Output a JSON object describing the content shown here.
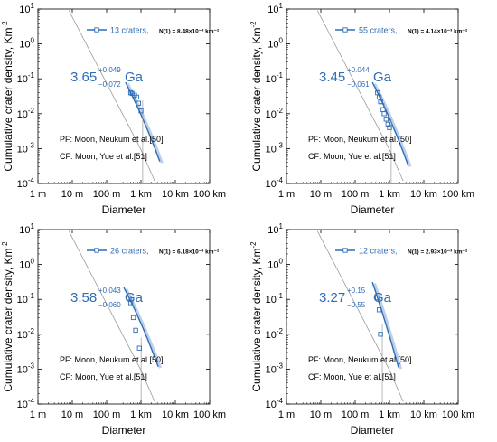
{
  "chart_data": [
    {
      "type": "scatter",
      "x_scale": "log",
      "y_scale": "log",
      "xlabel": "Diameter",
      "ylabel": "Cumulative crater density, Km",
      "ylabel_sup": "-2",
      "xlim": [
        "1 m",
        "100 km"
      ],
      "ylim": [
        "10^-4",
        "10^1"
      ],
      "x_ticks": [
        "1 m",
        "10 m",
        "100 m",
        "1 km",
        "10 km",
        "100 km"
      ],
      "y_ticks": [
        "10^1",
        "10^0",
        "10^-1",
        "10^-2",
        "10^-3",
        "10^-4"
      ],
      "legend": {
        "label": "13 craters,",
        "n1": "N(1) = 8.48×10⁻³ km⁻²",
        "placement": "top"
      },
      "age": {
        "value": "3.65",
        "plus": "+0.049",
        "minus": "−0.072",
        "unit": "Ga"
      },
      "notes": [
        "PF: Moon, Neukum et al.[50]",
        "CF: Moon, Yue et al.[51]"
      ],
      "series": [
        {
          "x_km": [
            0.5,
            0.55,
            0.65,
            0.75,
            0.85,
            1.0
          ],
          "y": [
            0.04,
            0.038,
            0.034,
            0.03,
            0.02,
            0.012
          ]
        }
      ],
      "colors": {
        "accent": "#2f6db5",
        "isochron": "#9a9a9a"
      }
    },
    {
      "type": "scatter",
      "x_scale": "log",
      "y_scale": "log",
      "xlabel": "Diameter",
      "ylabel": "Cumulative crater density, Km",
      "ylabel_sup": "-2",
      "xlim": [
        "1 m",
        "100 km"
      ],
      "ylim": [
        "10^-4",
        "10^1"
      ],
      "x_ticks": [
        "1 m",
        "10 m",
        "100 m",
        "1 km",
        "10 km",
        "100 km"
      ],
      "y_ticks": [
        "10^1",
        "10^0",
        "10^-1",
        "10^-2",
        "10^-3",
        "10^-4"
      ],
      "legend": {
        "label": "55 craters,",
        "n1": "N(1) = 4.14×10⁻³ km⁻²",
        "placement": "top"
      },
      "age": {
        "value": "3.45",
        "plus": "+0.044",
        "minus": "−0.061",
        "unit": "Ga"
      },
      "notes": [
        "PF: Moon, Neukum et al.[50]",
        "CF: Moon, Yue et al.[51]"
      ],
      "series": [
        {
          "x_km": [
            0.45,
            0.5,
            0.55,
            0.6,
            0.65,
            0.7,
            0.8,
            0.9,
            1.0
          ],
          "y": [
            0.04,
            0.03,
            0.022,
            0.017,
            0.013,
            0.01,
            0.007,
            0.005,
            0.004
          ]
        }
      ],
      "colors": {
        "accent": "#2f6db5",
        "isochron": "#9a9a9a"
      }
    },
    {
      "type": "scatter",
      "x_scale": "log",
      "y_scale": "log",
      "xlabel": "Diameter",
      "ylabel": "Cumulative crater density, Km",
      "ylabel_sup": "-2",
      "xlim": [
        "1 m",
        "100 km"
      ],
      "ylim": [
        "10^-4",
        "10^1"
      ],
      "x_ticks": [
        "1 m",
        "10 m",
        "100 m",
        "1 km",
        "10 km",
        "100 km"
      ],
      "y_ticks": [
        "10^1",
        "10^0",
        "10^-1",
        "10^-2",
        "10^-3",
        "10^-4"
      ],
      "legend": {
        "label": "26 craters,",
        "n1": "N(1) = 6.18×10⁻³ km⁻²",
        "placement": "top"
      },
      "age": {
        "value": "3.58",
        "plus": "+0.043",
        "minus": "−0.060",
        "unit": "Ga"
      },
      "notes": [
        "PF: Moon, Neukum et al.[50]",
        "CF: Moon, Yue et al.[51]"
      ],
      "series": [
        {
          "x_km": [
            0.45,
            0.5,
            0.6,
            0.7,
            0.9
          ],
          "y": [
            0.11,
            0.08,
            0.03,
            0.013,
            0.004
          ]
        }
      ],
      "colors": {
        "accent": "#2f6db5",
        "isochron": "#9a9a9a"
      }
    },
    {
      "type": "scatter",
      "x_scale": "log",
      "y_scale": "log",
      "xlabel": "Diameter",
      "ylabel": "Cumulative crater density, Km",
      "ylabel_sup": "-2",
      "xlim": [
        "1 m",
        "100 km"
      ],
      "ylim": [
        "10^-4",
        "10^1"
      ],
      "x_ticks": [
        "1 m",
        "10 m",
        "100 m",
        "1 km",
        "10 km",
        "100 km"
      ],
      "y_ticks": [
        "10^1",
        "10^0",
        "10^-1",
        "10^-2",
        "10^-3",
        "10^-4"
      ],
      "legend": {
        "label": "12 craters,",
        "n1": "N(1) = 2.93×10⁻³ km⁻²",
        "placement": "top"
      },
      "age": {
        "value": "3.27",
        "plus": "+0.15",
        "minus": "−0.55",
        "unit": "Ga"
      },
      "notes": [
        "PF: Moon, Neukum et al.[50]",
        "CF: Moon, Yue et al.[51]"
      ],
      "series": [
        {
          "x_km": [
            0.45,
            0.5,
            0.55
          ],
          "y": [
            0.11,
            0.05,
            0.01
          ]
        }
      ],
      "colors": {
        "accent": "#2f6db5",
        "isochron": "#9a9a9a"
      }
    }
  ]
}
